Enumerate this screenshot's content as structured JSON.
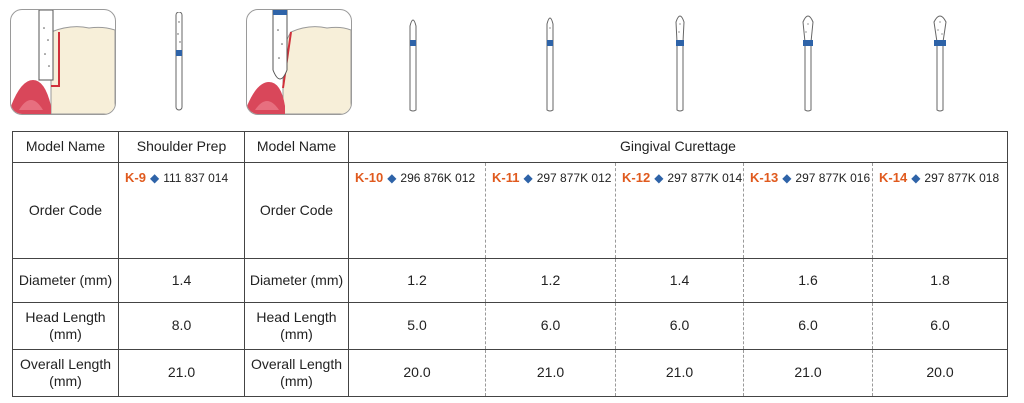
{
  "colors": {
    "accent_code": "#e05a1e",
    "diamond": "#2e63a8",
    "band_blue": "#2e63a8",
    "gum": "#d9475a",
    "tooth": "#f7efd9"
  },
  "illustrations": {
    "items": [
      {
        "kind": "clinical-illustration",
        "name": "shoulder-prep-illustration"
      },
      {
        "kind": "bur",
        "name": "bur-k9"
      },
      {
        "kind": "clinical-illustration",
        "name": "gingival-curettage-illustration"
      },
      {
        "kind": "bur",
        "name": "bur-k10"
      },
      {
        "kind": "bur",
        "name": "bur-k11"
      },
      {
        "kind": "bur",
        "name": "bur-k12"
      },
      {
        "kind": "bur",
        "name": "bur-k13"
      },
      {
        "kind": "bur",
        "name": "bur-k14"
      }
    ]
  },
  "table": {
    "model_name_label": "Model Name",
    "order_code_label": "Order Code",
    "diameter_label": "Diameter (mm)",
    "head_length_label": "Head Length (mm)",
    "overall_length_label": "Overall Length (mm)",
    "diamond_symbol": "◆",
    "group1": {
      "title": "Shoulder Prep",
      "model": {
        "code": "K-9",
        "part": "111 837 014",
        "diameter": "1.4",
        "head_length": "8.0",
        "overall_length": "21.0"
      }
    },
    "group2": {
      "title": "Gingival Curettage",
      "models": [
        {
          "code": "K-10",
          "part": "296 876K 012",
          "diameter": "1.2",
          "head_length": "5.0",
          "overall_length": "20.0"
        },
        {
          "code": "K-11",
          "part": "297 877K 012",
          "diameter": "1.2",
          "head_length": "6.0",
          "overall_length": "21.0"
        },
        {
          "code": "K-12",
          "part": "297 877K 014",
          "diameter": "1.4",
          "head_length": "6.0",
          "overall_length": "21.0"
        },
        {
          "code": "K-13",
          "part": "297 877K 016",
          "diameter": "1.6",
          "head_length": "6.0",
          "overall_length": "21.0"
        },
        {
          "code": "K-14",
          "part": "297 877K 018",
          "diameter": "1.8",
          "head_length": "6.0",
          "overall_length": "20.0"
        }
      ]
    }
  }
}
